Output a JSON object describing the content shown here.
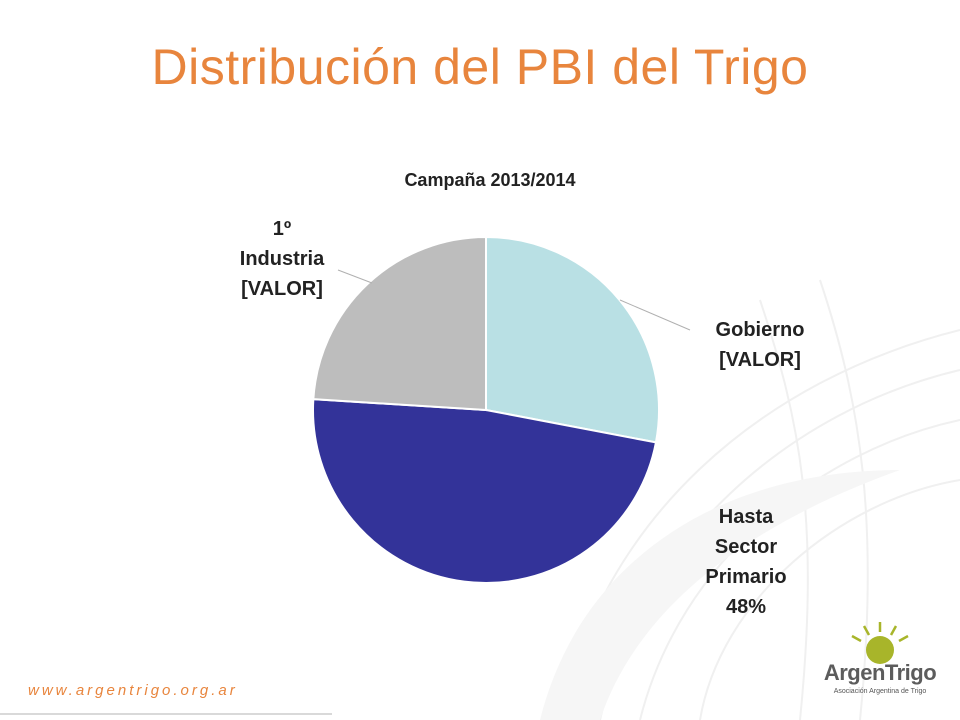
{
  "slide": {
    "title": "Distribución del PBI del Trigo",
    "footer_url": "www.argentrigo.org.ar",
    "logo_name": "ArgenTrigo",
    "logo_subtitle": "Asociación Argentina de Trigo"
  },
  "colors": {
    "accent": "#e8853d",
    "slice_gobierno": "#b9e0e4",
    "slice_primario": "#333399",
    "slice_industria": "#bdbdbd"
  },
  "chart_data": {
    "type": "pie",
    "title": "Campaña 2013/2014",
    "categories": [
      "Gobierno",
      "Hasta Sector Primario",
      "1º Industria"
    ],
    "labels": [
      "Gobierno\n[VALOR]",
      "Hasta\nSector\nPrimario\n48%",
      "1º\nIndustria\n[VALOR]"
    ],
    "values": [
      28,
      48,
      24
    ],
    "start_angle_deg": 0,
    "direction": "clockwise"
  }
}
